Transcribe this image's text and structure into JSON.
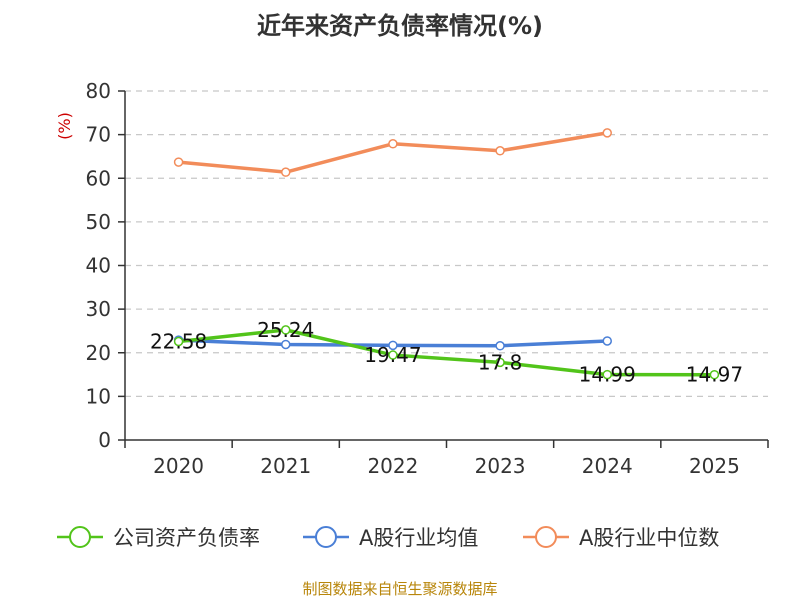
{
  "title": "近年来资产负债率情况(%)",
  "source_text": "制图数据来自恒生聚源数据库",
  "chart_data": {
    "type": "line",
    "title": "近年来资产负债率情况(%)",
    "ylabel": "(%)",
    "xlabel": "",
    "categories": [
      "2020",
      "2021",
      "2022",
      "2023",
      "2024",
      "2025"
    ],
    "ylim": [
      0,
      80
    ],
    "yticks": [
      0,
      10,
      20,
      30,
      40,
      50,
      60,
      70,
      80
    ],
    "grid": true,
    "legend_position": "bottom",
    "series": [
      {
        "name": "公司资产负债率",
        "color": "#52c41a",
        "values": [
          22.58,
          25.24,
          19.47,
          17.8,
          14.99,
          14.97
        ],
        "labels": [
          "22.58",
          "25.24",
          "19.47",
          "17.8",
          "14.99",
          "14.97"
        ]
      },
      {
        "name": "A股行业均值",
        "color": "#4a7fd6",
        "values": [
          22.9,
          21.9,
          21.7,
          21.6,
          22.7,
          null
        ]
      },
      {
        "name": "A股行业中位数",
        "color": "#f28c5a",
        "values": [
          63.7,
          61.4,
          67.9,
          66.3,
          70.4,
          null
        ]
      }
    ]
  }
}
